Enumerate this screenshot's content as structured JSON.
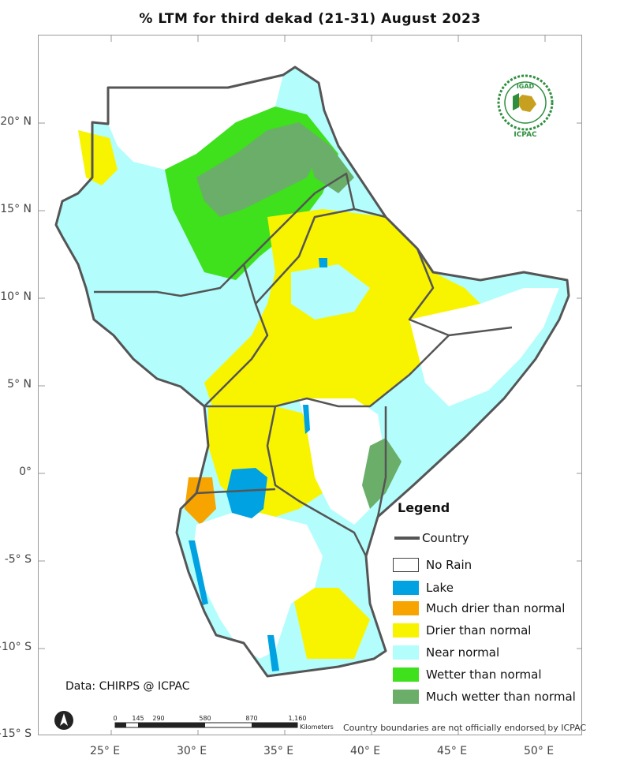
{
  "title": "% LTM   for   third dekad (21-31) August  2023",
  "axes": {
    "y_labels": [
      "20° N",
      "15° N",
      "10° N",
      "5° N",
      "0°",
      "-5° S",
      "-10° S",
      "-15° S"
    ],
    "x_labels": [
      "25° E",
      "30° E",
      "35° E",
      "40° E",
      "45° E",
      "50° E"
    ]
  },
  "legend": {
    "title": "Legend",
    "country_label": "Country",
    "items": [
      {
        "label": "No Rain",
        "color": "#ffffff"
      },
      {
        "label": "Lake",
        "color": "#00a2e2"
      },
      {
        "label": "Much drier than normal",
        "color": "#f7a400"
      },
      {
        "label": "Drier than normal",
        "color": "#f8f400"
      },
      {
        "label": "Near normal",
        "color": "#b3fdfd"
      },
      {
        "label": "Wetter than normal",
        "color": "#3fe01c"
      },
      {
        "label": "Much wetter than normal",
        "color": "#6aae6a"
      }
    ]
  },
  "credit": "Data: CHIRPS @ ICPAC",
  "disclaimer": "Country boundaries are not officially endorsed by ICPAC",
  "scale": {
    "ticks": [
      "0",
      "145",
      "290",
      "580",
      "870",
      "1,160"
    ],
    "unit": "Kilometers"
  },
  "logo": {
    "top_text": "IGAD",
    "bottom_text": "ICPAC"
  },
  "colors": {
    "border": "#555555",
    "frame": "#9a9a9a"
  }
}
